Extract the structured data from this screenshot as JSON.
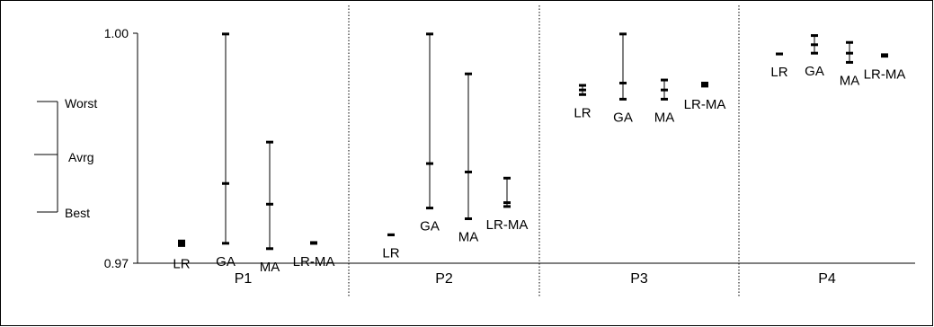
{
  "chart_data": {
    "type": "range",
    "ylim": [
      0.97,
      1.0
    ],
    "yticks": [
      {
        "value": 0.97,
        "label": "0.97"
      },
      {
        "value": 1.0,
        "label": "1.00"
      }
    ],
    "legend_key": {
      "worst": "Worst",
      "avg": "Avrg",
      "best": "Best"
    },
    "groups": [
      {
        "label": "P1",
        "items": [
          {
            "name": "LR",
            "best": 0.9723,
            "avg": 0.9726,
            "worst": 0.9729
          },
          {
            "name": "GA",
            "best": 0.9726,
            "avg": 0.9804,
            "worst": 0.9999
          },
          {
            "name": "MA",
            "best": 0.9719,
            "avg": 0.9777,
            "worst": 0.9858
          },
          {
            "name": "LR-MA",
            "best": 0.9726,
            "avg": 0.9726,
            "worst": 0.9727
          }
        ]
      },
      {
        "label": "P2",
        "items": [
          {
            "name": "LR",
            "best": 0.9737,
            "avg": 0.9737,
            "worst": 0.9737
          },
          {
            "name": "GA",
            "best": 0.9772,
            "avg": 0.983,
            "worst": 0.9999
          },
          {
            "name": "MA",
            "best": 0.9758,
            "avg": 0.9819,
            "worst": 0.9947
          },
          {
            "name": "LR-MA",
            "best": 0.9774,
            "avg": 0.9779,
            "worst": 0.9811
          }
        ]
      },
      {
        "label": "P3",
        "items": [
          {
            "name": "LR",
            "best": 0.992,
            "avg": 0.9926,
            "worst": 0.9932
          },
          {
            "name": "GA",
            "best": 0.9914,
            "avg": 0.9935,
            "worst": 0.9999
          },
          {
            "name": "MA",
            "best": 0.9914,
            "avg": 0.9926,
            "worst": 0.9939
          },
          {
            "name": "LR-MA",
            "best": 0.9931,
            "avg": 0.9933,
            "worst": 0.9935
          }
        ]
      },
      {
        "label": "P4",
        "items": [
          {
            "name": "LR",
            "best": 0.9973,
            "avg": 0.9973,
            "worst": 0.9973
          },
          {
            "name": "GA",
            "best": 0.9974,
            "avg": 0.9985,
            "worst": 0.9997
          },
          {
            "name": "MA",
            "best": 0.9962,
            "avg": 0.9974,
            "worst": 0.9988
          },
          {
            "name": "LR-MA",
            "best": 0.997,
            "avg": 0.9971,
            "worst": 0.9972
          }
        ]
      }
    ]
  }
}
